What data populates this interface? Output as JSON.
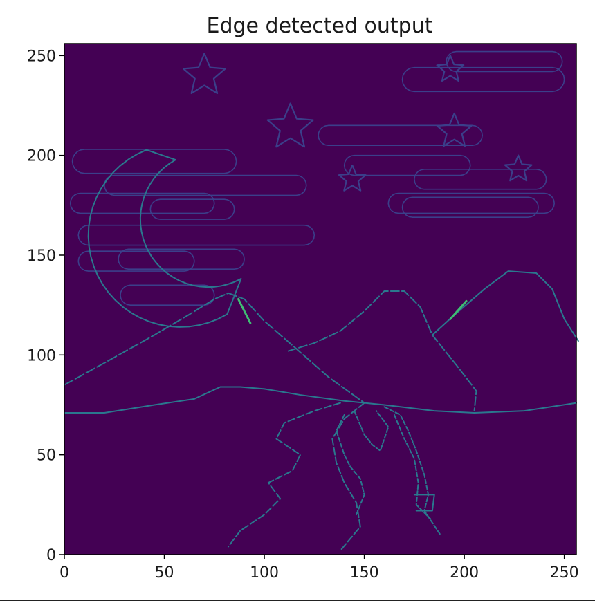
{
  "chart_data": {
    "type": "heatmap",
    "title": "Edge detected output",
    "xlabel": "",
    "ylabel": "",
    "xlim": [
      0,
      256
    ],
    "ylim": [
      0,
      256
    ],
    "xticks": [
      0,
      50,
      100,
      150,
      200,
      250
    ],
    "yticks": [
      0,
      50,
      100,
      150,
      200,
      250
    ],
    "grid": false,
    "colormap": "viridis",
    "colors": {
      "background": "#440154",
      "edge_faint": "#3b3f8a",
      "edge": "#2a788e",
      "edge_strong": "#3fbc73"
    }
  }
}
